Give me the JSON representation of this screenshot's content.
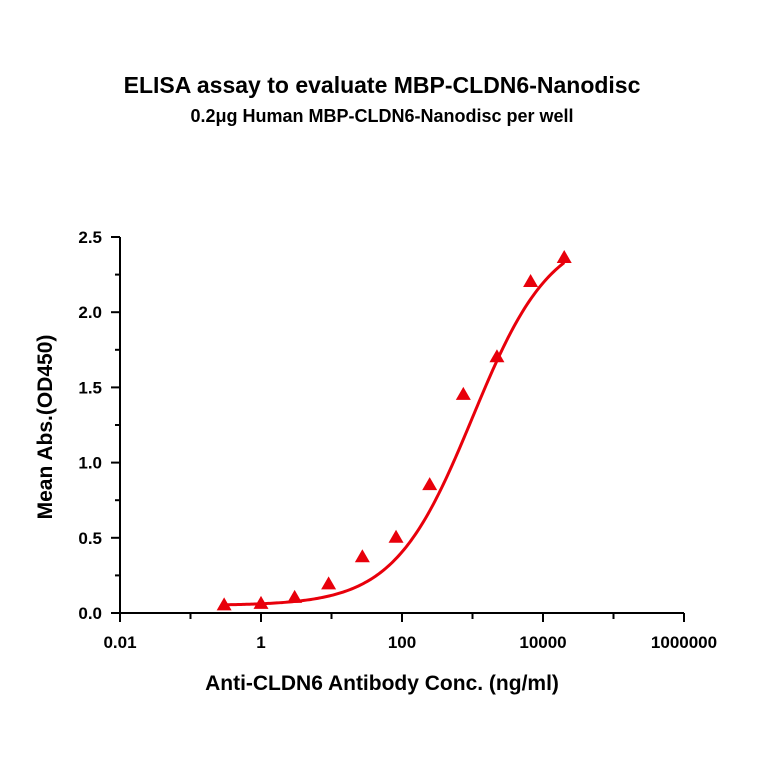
{
  "chart_data": {
    "type": "scatter",
    "title": "ELISA assay to evaluate MBP-CLDN6-Nanodisc",
    "subtitle": "0.2μg Human MBP-CLDN6-Nanodisc per well",
    "xlabel": "Anti-CLDN6 Antibody Conc. (ng/ml)",
    "ylabel": "Mean Abs.(OD450)",
    "x_scale": "log",
    "xlim": [
      0.01,
      1000000
    ],
    "ylim": [
      0,
      2.5
    ],
    "x_ticks": [
      {
        "value": 0.01,
        "label": "0.01"
      },
      {
        "value": 1,
        "label": "1"
      },
      {
        "value": 100,
        "label": "100"
      },
      {
        "value": 10000,
        "label": "10000"
      },
      {
        "value": 1000000,
        "label": "1000000"
      }
    ],
    "y_ticks": [
      {
        "value": 0,
        "label": "0.0"
      },
      {
        "value": 0.5,
        "label": "0.5"
      },
      {
        "value": 1.0,
        "label": "1.0"
      },
      {
        "value": 1.5,
        "label": "1.5"
      },
      {
        "value": 2.0,
        "label": "2.0"
      },
      {
        "value": 2.5,
        "label": "2.5"
      }
    ],
    "series": [
      {
        "marker": "triangle",
        "color": "#e8000b",
        "x": [
          0.3,
          1,
          3,
          9.1,
          27.4,
          82.3,
          247,
          741,
          2222,
          6667,
          20000
        ],
        "y": [
          0.05,
          0.06,
          0.1,
          0.19,
          0.37,
          0.5,
          0.85,
          1.45,
          1.7,
          2.2,
          2.36
        ]
      }
    ],
    "fit_curve": {
      "type": "4PL",
      "color": "#e8000b",
      "bottom": 0.05,
      "top": 2.55,
      "ec50": 1000,
      "hill": 0.78,
      "x_range": [
        0.3,
        20000
      ]
    },
    "grid": false
  }
}
